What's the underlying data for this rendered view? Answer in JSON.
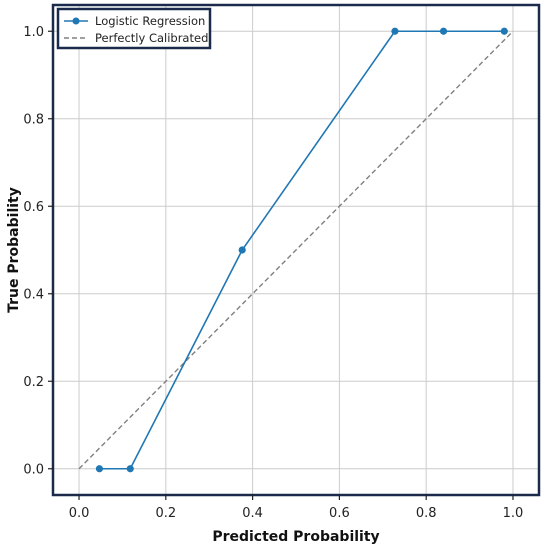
{
  "chart_data": {
    "type": "line",
    "xlabel": "Predicted Probability",
    "ylabel": "True Probability",
    "xlim": [
      -0.06,
      1.06
    ],
    "ylim": [
      -0.06,
      1.06
    ],
    "xticks": [
      0.0,
      0.2,
      0.4,
      0.6,
      0.8,
      1.0
    ],
    "yticks": [
      0.0,
      0.2,
      0.4,
      0.6,
      0.8,
      1.0
    ],
    "xtick_labels": [
      "0.0",
      "0.2",
      "0.4",
      "0.6",
      "0.8",
      "1.0"
    ],
    "ytick_labels": [
      "0.0",
      "0.2",
      "0.4",
      "0.6",
      "0.8",
      "1.0"
    ],
    "grid": true,
    "legend_position": "top-left",
    "series": [
      {
        "name": "Logistic Regression",
        "style": "solid-with-markers",
        "color": "#1f77b4",
        "x": [
          0.047,
          0.118,
          0.376,
          0.728,
          0.84,
          0.98
        ],
        "y": [
          0.0,
          0.0,
          0.5,
          1.0,
          1.0,
          1.0
        ]
      },
      {
        "name": "Perfectly Calibrated",
        "style": "dashed",
        "color": "#808080",
        "x": [
          0.0,
          1.0
        ],
        "y": [
          0.0,
          1.0
        ]
      }
    ],
    "frame_color": "#1b2a4a"
  }
}
